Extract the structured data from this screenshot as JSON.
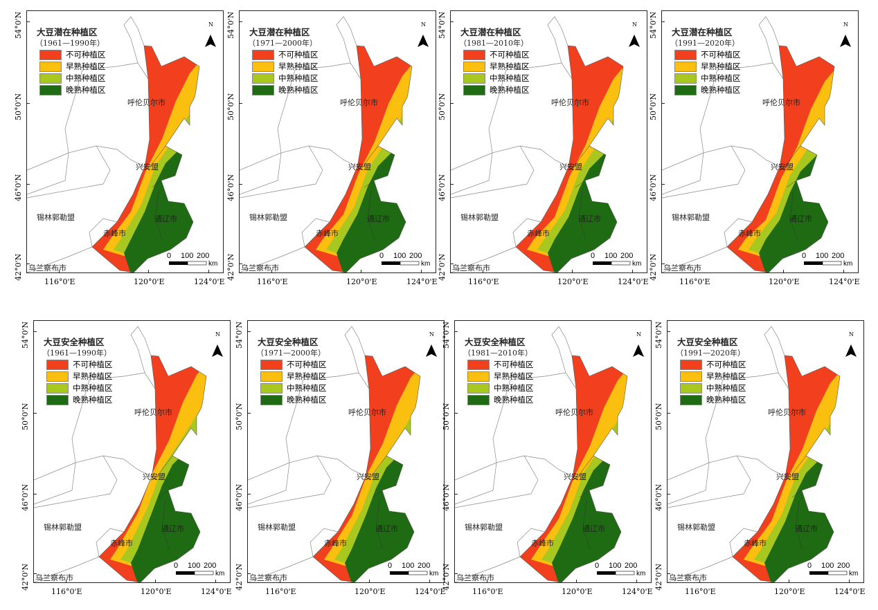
{
  "panels": [
    {
      "title": "大豆潜在种植区",
      "period": "（1961—1990年）"
    },
    {
      "title": "大豆潜在种植区",
      "period": "（1971—2000年）"
    },
    {
      "title": "大豆潜在种植区",
      "period": "（1981—2010年）"
    },
    {
      "title": "大豆潜在种植区",
      "period": "（1991—2020年）"
    },
    {
      "title": "大豆安全种植区",
      "period": "（1961—1990年）"
    },
    {
      "title": "大豆安全种植区",
      "period": "（1971—2000年）"
    },
    {
      "title": "大豆安全种植区",
      "period": "（1981—2010年）"
    },
    {
      "title": "大豆安全种植区",
      "period": "（1991—2020年）"
    }
  ],
  "legend": [
    {
      "label": "不可种植区",
      "color": "#f2401f"
    },
    {
      "label": "早熟种植区",
      "color": "#fbbf10"
    },
    {
      "label": "中熟种植区",
      "color": "#a9c81f"
    },
    {
      "label": "晚熟种植区",
      "color": "#1f6b13"
    }
  ],
  "places": {
    "hulunbuir": "呼伦贝尔市",
    "xingan": "兴安盟",
    "xilingol": "锡林郭勒盟",
    "tongliao": "通辽市",
    "chifeng": "赤峰市",
    "ulanqab": "乌兰察布市"
  },
  "axes": {
    "lat": [
      "54°0'N",
      "50°0'N",
      "46°0'N",
      "42°0'N"
    ],
    "lon": [
      "116°0'E",
      "120°0'E",
      "124°0'E"
    ]
  },
  "north": "N",
  "scale": {
    "ticks": [
      "0",
      "100",
      "200"
    ],
    "unit": "km"
  }
}
